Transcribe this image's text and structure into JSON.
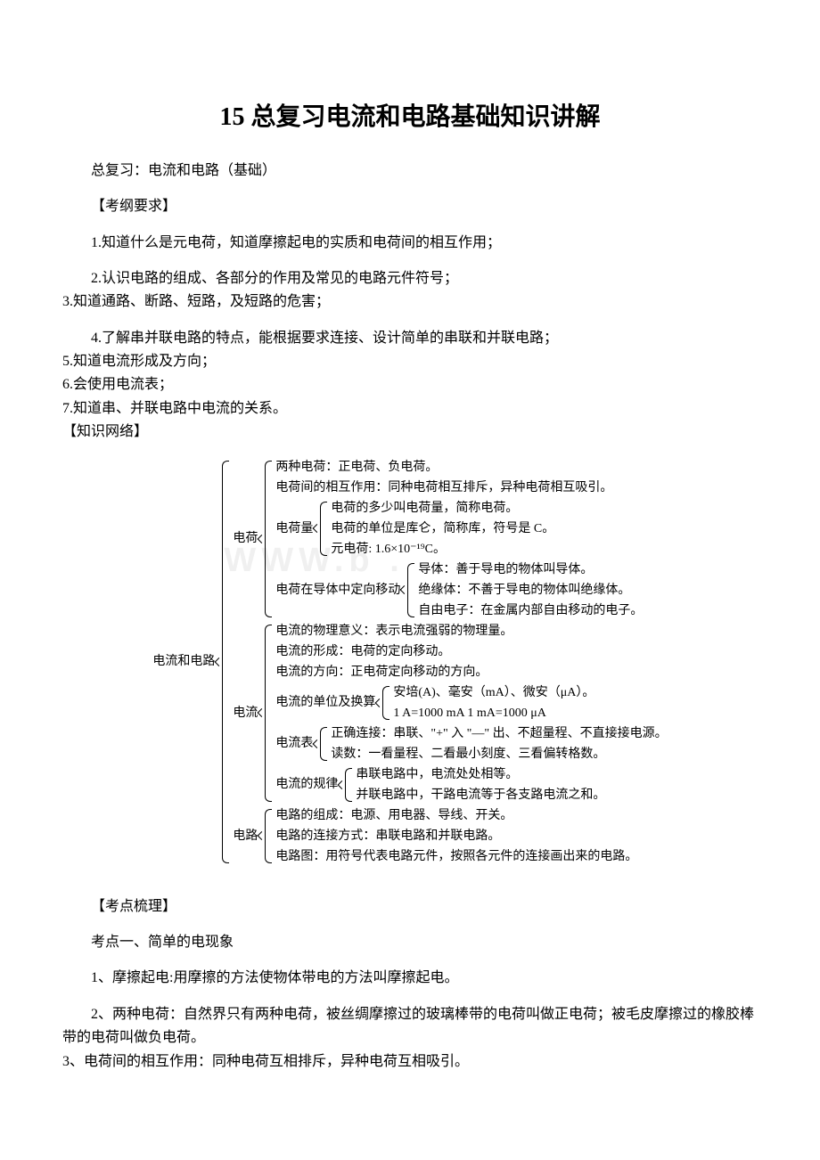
{
  "title": "15 总复习电流和电路基础知识讲解",
  "p_sub": "总复习：电流和电路（基础）",
  "h_syllabus": "【考纲要求】",
  "s1": "1.知道什么是元电荷，知道摩擦起电的实质和电荷间的相互作用；",
  "s2": "2.认识电路的组成、各部分的作用及常见的电路元件符号；",
  "s3": "3.知道通路、断路、短路，及短路的危害；",
  "s4": "4.了解串并联电路的特点，能根据要求连接、设计简单的串联和并联电路；",
  "s5": "5.知道电流形成及方向；",
  "s6": "6.会使用电流表；",
  "s7": "7.知道串、并联电路中电流的关系。",
  "h_net": "【知识网络】",
  "h_points": "【考点梳理】",
  "k_h1": "考点一、简单的电现象",
  "k1": "1、摩擦起电:用摩擦的方法使物体带电的方法叫摩擦起电。",
  "k2": "2、两种电荷：自然界只有两种电荷，被丝绸摩擦过的玻璃棒带的电荷叫做正电荷；被毛皮摩擦过的橡胶棒带的电荷叫做负电荷。",
  "k3": "3、电荷间的相互作用：同种电荷互相排斥，异种电荷互相吸引。",
  "watermark": "WWW.b          .",
  "diagram": {
    "root": "电流和电路",
    "dianhe": {
      "label": "电荷",
      "l1": "两种电荷：正电荷、负电荷。",
      "l2": "电荷间的相互作用：同种电荷相互排斥，异种电荷相互吸引。",
      "dianheliang": {
        "label": "电荷量",
        "c1": "电荷的多少叫电荷量，简称电荷。",
        "c2": "电荷的单位是库仑，简称库，符号是 C。",
        "c3": "元电荷: 1.6×10⁻¹⁹C。"
      },
      "dingxiang": {
        "label": "电荷在导体中定向移动",
        "c1": "导体：善于导电的物体叫导体。",
        "c2": "绝缘体：不善于导电的物体叫绝缘体。",
        "c3": "自由电子：在金属内部自由移动的电子。"
      }
    },
    "dianliu": {
      "label": "电流",
      "l1": "电流的物理意义：表示电流强弱的物理量。",
      "l2": "电流的形成：电荷的定向移动。",
      "l3": "电流的方向：正电荷定向移动的方向。",
      "danwei": {
        "label": "电流的单位及换算",
        "c1": "安培(A)、毫安（mA）、微安（μA）。",
        "c2": "1 A=1000 mA    1 mA=1000 μA"
      },
      "dianliubiao": {
        "label": "电流表",
        "c1": "正确连接：串联、\"+\" 入 \"—\" 出、不超量程、不直接接电源。",
        "c2": "读数：一看量程、二看最小刻度、三看偏转格数。"
      },
      "guilv": {
        "label": "电流的规律",
        "c1": "串联电路中，电流处处相等。",
        "c2": "并联电路中，干路电流等于各支路电流之和。"
      }
    },
    "dianlu": {
      "label": "电路",
      "c1": "电路的组成：电源、用电器、导线、开关。",
      "c2": "电路的连接方式：串联电路和并联电路。",
      "c3": "电路图：用符号代表电路元件，按照各元件的连接画出来的电路。"
    }
  }
}
